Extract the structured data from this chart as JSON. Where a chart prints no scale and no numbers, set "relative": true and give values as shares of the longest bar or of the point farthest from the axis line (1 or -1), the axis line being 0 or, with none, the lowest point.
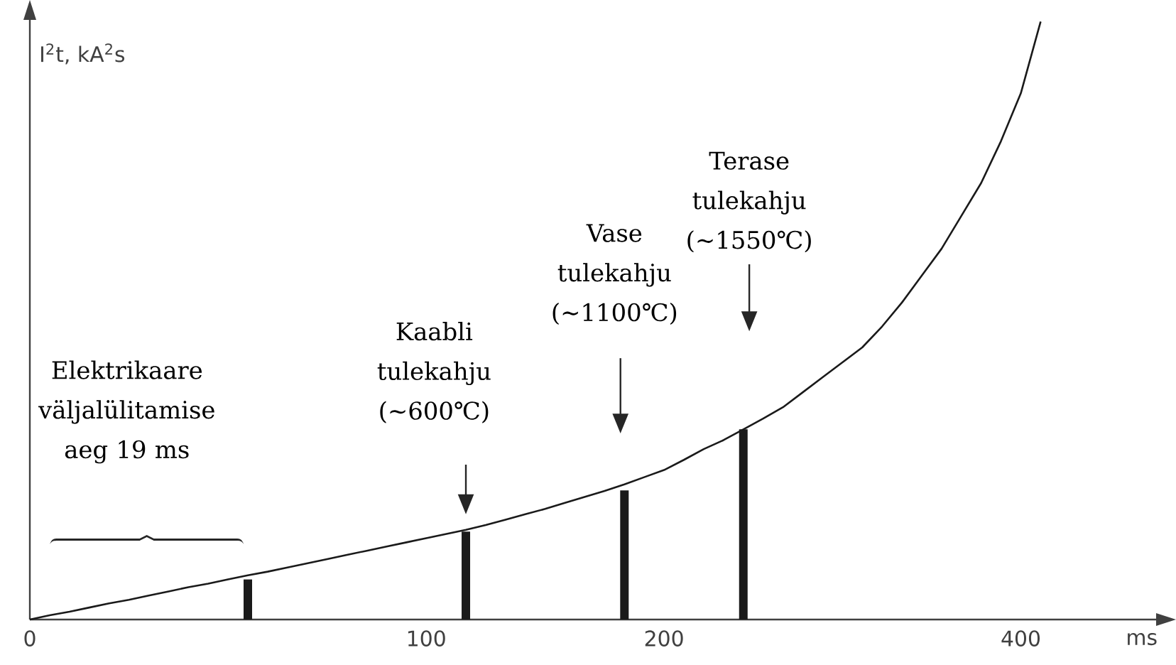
{
  "chart_data": {
    "type": "line",
    "ylabel": "I$^{2}$t, kA$^{2}$s",
    "xlabel": "ms",
    "relative": true,
    "categories": [
      "0",
      null,
      null,
      null,
      null,
      null,
      null,
      null,
      null,
      null,
      null,
      null,
      null,
      null,
      null,
      null,
      null,
      null,
      null,
      null,
      "100",
      null,
      null,
      null,
      null,
      null,
      null,
      null,
      null,
      null,
      null,
      null,
      "200",
      null,
      null,
      null,
      null,
      null,
      null,
      null,
      null,
      null,
      null,
      null,
      null,
      null,
      null,
      null,
      null,
      null,
      "400",
      null
    ],
    "series": [
      {
        "color": "#1a1a1a",
        "values": [
          0,
          0.007,
          0.013,
          0.02,
          0.027,
          0.033,
          0.04,
          0.047,
          0.054,
          0.06,
          0.067,
          0.074,
          0.08,
          0.087,
          0.094,
          0.101,
          0.108,
          0.115,
          0.122,
          0.129,
          0.136,
          0.143,
          0.15,
          0.158,
          0.167,
          0.176,
          0.185,
          0.195,
          0.205,
          0.215,
          0.226,
          0.238,
          0.25,
          0.267,
          0.285,
          0.3,
          0.318,
          0.336,
          0.355,
          0.38,
          0.405,
          0.43,
          0.455,
          0.49,
          0.53,
          0.575,
          0.62,
          0.675,
          0.73,
          0.8,
          0.88,
          1.0
        ]
      },
      {
        "type": "bar",
        "color": "#1a1a1a",
        "values": [
          null,
          null,
          null,
          null,
          null,
          null,
          null,
          null,
          null,
          null,
          null,
          0.067,
          null,
          null,
          null,
          null,
          null,
          null,
          null,
          null,
          null,
          null,
          0.147,
          null,
          null,
          null,
          null,
          null,
          null,
          null,
          0.216,
          null,
          null,
          null,
          null,
          null,
          0.318,
          null,
          null,
          null,
          null,
          null,
          null,
          null,
          null,
          null,
          null,
          null,
          null,
          null,
          null,
          null
        ]
      }
    ],
    "annotations": [
      "Elektrikaare väljalülitamise aeg 19 ms",
      "Kaabli tulekahju (~600℃)",
      "Vase tulekahju (~1100℃)",
      "Terase tulekahju (~1550℃)"
    ]
  }
}
